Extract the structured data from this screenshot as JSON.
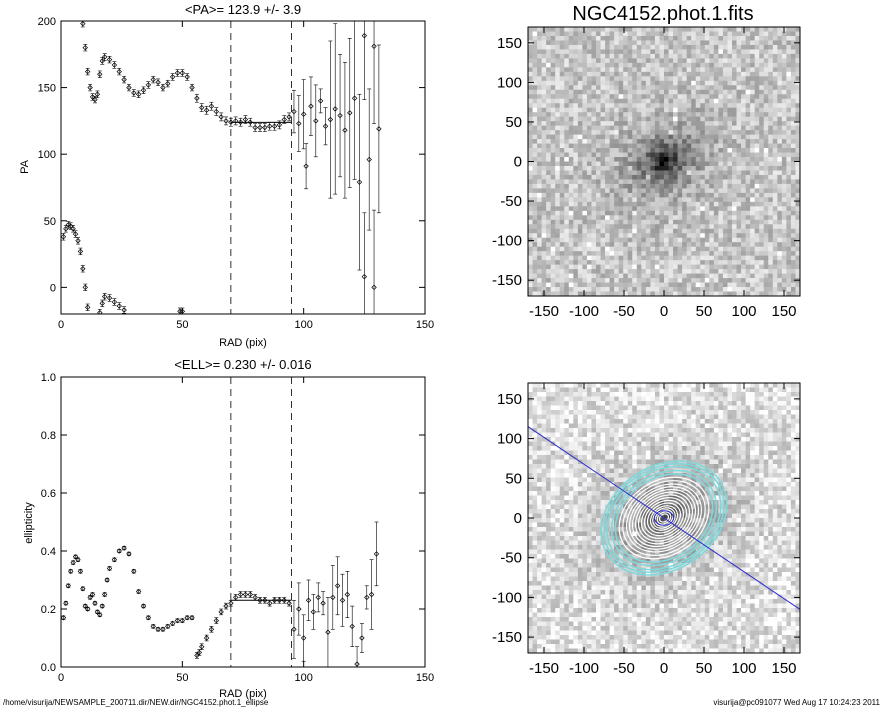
{
  "chart_data": [
    {
      "type": "scatter",
      "title": "<PA>= 123.9 +/-   3.9",
      "xlabel": "RAD (pix)",
      "ylabel": "PA",
      "xlim": [
        0,
        150
      ],
      "ylim": [
        -20,
        200
      ],
      "xticks": [
        "0",
        "50",
        "100",
        "150"
      ],
      "yticks": [
        "0",
        "50",
        "100",
        "150",
        "200"
      ],
      "vlines": [
        70,
        95
      ],
      "fit_segment": {
        "x0": 70,
        "x1": 95,
        "y": 123.9
      },
      "points": [
        {
          "x": 1,
          "y": 38
        },
        {
          "x": 2,
          "y": 44
        },
        {
          "x": 3,
          "y": 47
        },
        {
          "x": 4,
          "y": 46
        },
        {
          "x": 5,
          "y": 44
        },
        {
          "x": 6,
          "y": 40
        },
        {
          "x": 7,
          "y": 35
        },
        {
          "x": 8,
          "y": 27
        },
        {
          "x": 9,
          "y": 14
        },
        {
          "x": 10,
          "y": 0
        },
        {
          "x": 11,
          "y": -15
        },
        {
          "x": 9,
          "y": 198
        },
        {
          "x": 10,
          "y": 180
        },
        {
          "x": 11,
          "y": 162
        },
        {
          "x": 12,
          "y": 150
        },
        {
          "x": 13,
          "y": 143
        },
        {
          "x": 14,
          "y": 141
        },
        {
          "x": 15,
          "y": 145
        },
        {
          "x": 16,
          "y": 160
        },
        {
          "x": 16,
          "y": -19
        },
        {
          "x": 17,
          "y": -12
        },
        {
          "x": 18,
          "y": -7
        },
        {
          "x": 20,
          "y": -8
        },
        {
          "x": 22,
          "y": -11
        },
        {
          "x": 24,
          "y": -14
        },
        {
          "x": 26,
          "y": -17
        },
        {
          "x": 17,
          "y": 170
        },
        {
          "x": 18,
          "y": 173
        },
        {
          "x": 20,
          "y": 171
        },
        {
          "x": 22,
          "y": 167
        },
        {
          "x": 24,
          "y": 162
        },
        {
          "x": 26,
          "y": 156
        },
        {
          "x": 28,
          "y": 150
        },
        {
          "x": 30,
          "y": 146
        },
        {
          "x": 32,
          "y": 145
        },
        {
          "x": 34,
          "y": 148
        },
        {
          "x": 36,
          "y": 152
        },
        {
          "x": 38,
          "y": 156
        },
        {
          "x": 40,
          "y": 154
        },
        {
          "x": 42,
          "y": 150
        },
        {
          "x": 44,
          "y": 153
        },
        {
          "x": 46,
          "y": 158
        },
        {
          "x": 48,
          "y": 161
        },
        {
          "x": 50,
          "y": 161
        },
        {
          "x": 52,
          "y": 158
        },
        {
          "x": 54,
          "y": 150
        },
        {
          "x": 49,
          "y": -18
        },
        {
          "x": 50,
          "y": -18
        },
        {
          "x": 56,
          "y": 142
        },
        {
          "x": 58,
          "y": 135
        },
        {
          "x": 60,
          "y": 133
        },
        {
          "x": 62,
          "y": 136
        },
        {
          "x": 64,
          "y": 132
        },
        {
          "x": 66,
          "y": 128
        },
        {
          "x": 68,
          "y": 125
        },
        {
          "x": 70,
          "y": 124
        },
        {
          "x": 72,
          "y": 125
        },
        {
          "x": 74,
          "y": 124
        },
        {
          "x": 76,
          "y": 126
        },
        {
          "x": 78,
          "y": 124
        },
        {
          "x": 80,
          "y": 120
        },
        {
          "x": 82,
          "y": 120
        },
        {
          "x": 84,
          "y": 120
        },
        {
          "x": 86,
          "y": 121
        },
        {
          "x": 88,
          "y": 121
        },
        {
          "x": 90,
          "y": 122
        },
        {
          "x": 92,
          "y": 126
        },
        {
          "x": 94,
          "y": 128
        },
        {
          "x": 96,
          "y": 132
        },
        {
          "x": 98,
          "y": 123
        },
        {
          "x": 100,
          "y": 130
        },
        {
          "x": 101,
          "y": 91
        },
        {
          "x": 103,
          "y": 136
        },
        {
          "x": 105,
          "y": 125
        },
        {
          "x": 107,
          "y": 140
        },
        {
          "x": 109,
          "y": 121
        },
        {
          "x": 111,
          "y": 126
        },
        {
          "x": 113,
          "y": 134
        },
        {
          "x": 115,
          "y": 129
        },
        {
          "x": 117,
          "y": 118
        },
        {
          "x": 119,
          "y": 131
        },
        {
          "x": 121,
          "y": 142
        },
        {
          "x": 123,
          "y": 79
        },
        {
          "x": 125,
          "y": 8
        },
        {
          "x": 125,
          "y": 189
        },
        {
          "x": 127,
          "y": 96
        },
        {
          "x": 129,
          "y": 0
        },
        {
          "x": 129,
          "y": 181
        },
        {
          "x": 131,
          "y": 119
        }
      ]
    },
    {
      "type": "scatter",
      "title": "<ELL>= 0.230 +/-  0.016",
      "xlabel": "RAD (pix)",
      "ylabel": "ellipticity",
      "xlim": [
        0,
        150
      ],
      "ylim": [
        0,
        1
      ],
      "xticks": [
        "0",
        "50",
        "100",
        "150"
      ],
      "yticks": [
        "0.0",
        "0.2",
        "0.4",
        "0.6",
        "0.8",
        "1.0"
      ],
      "vlines": [
        70,
        95
      ],
      "fit_segment": {
        "x0": 70,
        "x1": 95,
        "y": 0.23
      },
      "points": [
        {
          "x": 1,
          "y": 0.17
        },
        {
          "x": 2,
          "y": 0.22
        },
        {
          "x": 3,
          "y": 0.28
        },
        {
          "x": 4,
          "y": 0.33
        },
        {
          "x": 5,
          "y": 0.36
        },
        {
          "x": 6,
          "y": 0.38
        },
        {
          "x": 7,
          "y": 0.37
        },
        {
          "x": 8,
          "y": 0.33
        },
        {
          "x": 9,
          "y": 0.27
        },
        {
          "x": 10,
          "y": 0.21
        },
        {
          "x": 11,
          "y": 0.2
        },
        {
          "x": 12,
          "y": 0.24
        },
        {
          "x": 13,
          "y": 0.25
        },
        {
          "x": 14,
          "y": 0.22
        },
        {
          "x": 15,
          "y": 0.19
        },
        {
          "x": 16,
          "y": 0.18
        },
        {
          "x": 17,
          "y": 0.21
        },
        {
          "x": 18,
          "y": 0.25
        },
        {
          "x": 19,
          "y": 0.3
        },
        {
          "x": 20,
          "y": 0.34
        },
        {
          "x": 22,
          "y": 0.37
        },
        {
          "x": 24,
          "y": 0.4
        },
        {
          "x": 26,
          "y": 0.41
        },
        {
          "x": 28,
          "y": 0.39
        },
        {
          "x": 30,
          "y": 0.33
        },
        {
          "x": 32,
          "y": 0.26
        },
        {
          "x": 34,
          "y": 0.21
        },
        {
          "x": 36,
          "y": 0.17
        },
        {
          "x": 38,
          "y": 0.14
        },
        {
          "x": 40,
          "y": 0.13
        },
        {
          "x": 42,
          "y": 0.13
        },
        {
          "x": 44,
          "y": 0.14
        },
        {
          "x": 46,
          "y": 0.15
        },
        {
          "x": 48,
          "y": 0.16
        },
        {
          "x": 50,
          "y": 0.16
        },
        {
          "x": 52,
          "y": 0.17
        },
        {
          "x": 54,
          "y": 0.17
        },
        {
          "x": 56,
          "y": 0.04
        },
        {
          "x": 57,
          "y": 0.05
        },
        {
          "x": 58,
          "y": 0.07
        },
        {
          "x": 60,
          "y": 0.1
        },
        {
          "x": 62,
          "y": 0.13
        },
        {
          "x": 64,
          "y": 0.16
        },
        {
          "x": 66,
          "y": 0.19
        },
        {
          "x": 68,
          "y": 0.21
        },
        {
          "x": 70,
          "y": 0.22
        },
        {
          "x": 72,
          "y": 0.24
        },
        {
          "x": 74,
          "y": 0.25
        },
        {
          "x": 76,
          "y": 0.25
        },
        {
          "x": 78,
          "y": 0.25
        },
        {
          "x": 80,
          "y": 0.24
        },
        {
          "x": 82,
          "y": 0.23
        },
        {
          "x": 84,
          "y": 0.23
        },
        {
          "x": 86,
          "y": 0.22
        },
        {
          "x": 88,
          "y": 0.23
        },
        {
          "x": 90,
          "y": 0.23
        },
        {
          "x": 92,
          "y": 0.23
        },
        {
          "x": 94,
          "y": 0.22
        },
        {
          "x": 96,
          "y": 0.13
        },
        {
          "x": 98,
          "y": 0.2
        },
        {
          "x": 100,
          "y": 0.1
        },
        {
          "x": 102,
          "y": 0.23
        },
        {
          "x": 104,
          "y": 0.19
        },
        {
          "x": 106,
          "y": 0.24
        },
        {
          "x": 108,
          "y": 0.22
        },
        {
          "x": 110,
          "y": 0.12
        },
        {
          "x": 112,
          "y": 0.24
        },
        {
          "x": 114,
          "y": 0.28
        },
        {
          "x": 116,
          "y": 0.23
        },
        {
          "x": 118,
          "y": 0.25
        },
        {
          "x": 120,
          "y": 0.14
        },
        {
          "x": 122,
          "y": 0.01
        },
        {
          "x": 124,
          "y": 0.1
        },
        {
          "x": 126,
          "y": 0.24
        },
        {
          "x": 128,
          "y": 0.25
        },
        {
          "x": 130,
          "y": 0.39
        }
      ]
    }
  ],
  "images": {
    "top": {
      "title": "NGC4152.phot.1.fits",
      "xticks": [
        "-150",
        "-100",
        "-50",
        "0",
        "50",
        "100",
        "150"
      ],
      "yticks": [
        "-150",
        "-100",
        "-50",
        "0",
        "50",
        "100",
        "150"
      ],
      "range": [
        -170,
        170
      ]
    },
    "bottom": {
      "xticks": [
        "-150",
        "-100",
        "-50",
        "0",
        "50",
        "100",
        "150"
      ],
      "yticks": [
        "-150",
        "-100",
        "-50",
        "0",
        "50",
        "100",
        "150"
      ],
      "range": [
        -170,
        170
      ],
      "contour_color_outer": "#7fd8dc",
      "contour_color_inner": "#ffffff",
      "pa_line_color": "#2b2bd0",
      "pa_deg": 123.9,
      "ell": 0.23
    }
  },
  "footer": {
    "path": "/home/visurija/NEWSAMPLE_200711.dir/NEW.dir/NGC4152.phot.1_ellipse",
    "stamp": "visurija@pc091077  Wed Aug 17 10:24:23 2011"
  }
}
